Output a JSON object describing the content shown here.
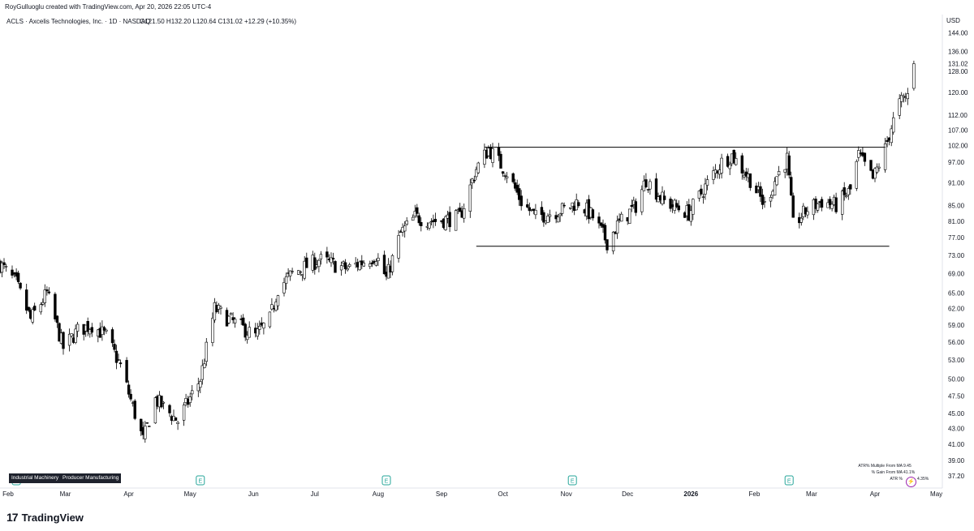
{
  "header": {
    "attribution": "RoyGulluoglu created with TradingView.com, Apr 20, 2026 22:05 UTC-4"
  },
  "symbol_line": {
    "text": "ACLS · Axcelis Technologies, Inc. · 1D · NASDAQ",
    "ohlc": "O121.50  H132.20  L120.64  C131.02  +12.29 (+10.35%)"
  },
  "price_axis": {
    "currency": "USD",
    "last_price": "131.02",
    "last_price_value": 131.02
  },
  "tags": [
    "Industrial Machinery",
    "Producer Manufacturing"
  ],
  "earnings_marker": "E",
  "stats": {
    "rows": [
      {
        "label": "ATR% Multiple From MA",
        "value": "9.45"
      },
      {
        "label": "% Gain From MA",
        "value": "41.1%"
      },
      {
        "label": "ATR %",
        "value": "4.35%"
      }
    ]
  },
  "footer": {
    "logo_mark": "17",
    "logo_text": "TradingView"
  },
  "colors": {
    "up": "#ffffff",
    "down": "#000000",
    "candle_border": "#000000",
    "trendline": "#000000",
    "tag_bg": "#1e222d",
    "earnings": "#26a69a",
    "bolt": "#9c27b0"
  },
  "chart_data": {
    "type": "candlestick",
    "title": "ACLS · Axcelis Technologies, Inc. · 1D · NASDAQ",
    "y_scale": "log",
    "ylim": [
      36,
      150
    ],
    "y_ticks": [
      "144.00",
      "136.00",
      "128.00",
      "120.00",
      "112.00",
      "107.00",
      "102.00",
      "97.00",
      "91.00",
      "85.00",
      "81.00",
      "77.00",
      "73.00",
      "69.00",
      "65.00",
      "62.00",
      "59.00",
      "56.00",
      "53.00",
      "50.00",
      "47.50",
      "45.00",
      "43.00",
      "41.00",
      "39.00",
      "37.20"
    ],
    "x_ticks": [
      {
        "label": "Feb",
        "bold": false
      },
      {
        "label": "Mar",
        "bold": false
      },
      {
        "label": "Apr",
        "bold": false
      },
      {
        "label": "May",
        "bold": false
      },
      {
        "label": "Jun",
        "bold": false
      },
      {
        "label": "Jul",
        "bold": false
      },
      {
        "label": "Aug",
        "bold": false
      },
      {
        "label": "Sep",
        "bold": false
      },
      {
        "label": "Oct",
        "bold": false
      },
      {
        "label": "Nov",
        "bold": false
      },
      {
        "label": "Dec",
        "bold": false
      },
      {
        "label": "2026",
        "bold": true
      },
      {
        "label": "Feb",
        "bold": false
      },
      {
        "label": "Mar",
        "bold": false
      },
      {
        "label": "Apr",
        "bold": false
      },
      {
        "label": "May",
        "bold": false
      }
    ],
    "earnings_events": [
      "2025-02-05",
      "2025-05-06",
      "2025-08-05",
      "2025-11-04",
      "2026-02-18"
    ],
    "resistance": {
      "value": 101.5,
      "from": "2025-09-22",
      "to": "2026-04-06"
    },
    "support": {
      "value": 75.0,
      "from": "2025-09-18",
      "to": "2026-04-08"
    },
    "last_close": 131.02,
    "price_path": [
      [
        "2025-01-28",
        71.0
      ],
      [
        "2025-02-05",
        67.0
      ],
      [
        "2025-02-12",
        60.0
      ],
      [
        "2025-02-20",
        65.0
      ],
      [
        "2025-02-28",
        55.0
      ],
      [
        "2025-03-07",
        58.0
      ],
      [
        "2025-03-14",
        59.0
      ],
      [
        "2025-03-21",
        57.0
      ],
      [
        "2025-03-28",
        52.0
      ],
      [
        "2025-04-04",
        45.0
      ],
      [
        "2025-04-08",
        41.5
      ],
      [
        "2025-04-14",
        47.0
      ],
      [
        "2025-04-25",
        44.0
      ],
      [
        "2025-05-06",
        50.0
      ],
      [
        "2025-05-13",
        62.0
      ],
      [
        "2025-05-20",
        60.0
      ],
      [
        "2025-06-02",
        57.0
      ],
      [
        "2025-06-09",
        60.0
      ],
      [
        "2025-06-13",
        66.0
      ],
      [
        "2025-06-20",
        69.0
      ],
      [
        "2025-07-03",
        72.0
      ],
      [
        "2025-07-17",
        70.0
      ],
      [
        "2025-07-31",
        73.0
      ],
      [
        "2025-08-05",
        68.0
      ],
      [
        "2025-08-12",
        78.0
      ],
      [
        "2025-08-19",
        82.0
      ],
      [
        "2025-08-29",
        81.0
      ],
      [
        "2025-09-10",
        82.0
      ],
      [
        "2025-09-18",
        95.0
      ],
      [
        "2025-09-24",
        101.0
      ],
      [
        "2025-10-03",
        94.0
      ],
      [
        "2025-10-10",
        86.0
      ],
      [
        "2025-10-17",
        82.0
      ],
      [
        "2025-10-31",
        84.0
      ],
      [
        "2025-11-07",
        86.0
      ],
      [
        "2025-11-14",
        82.0
      ],
      [
        "2025-11-21",
        76.0
      ],
      [
        "2025-11-26",
        80.0
      ],
      [
        "2025-12-05",
        85.0
      ],
      [
        "2025-12-10",
        92.0
      ],
      [
        "2025-12-19",
        86.0
      ],
      [
        "2025-12-31",
        83.0
      ],
      [
        "2026-01-08",
        90.0
      ],
      [
        "2026-01-16",
        97.0
      ],
      [
        "2026-01-21",
        99.0
      ],
      [
        "2026-01-30",
        92.0
      ],
      [
        "2026-02-06",
        85.0
      ],
      [
        "2026-02-12",
        93.0
      ],
      [
        "2026-02-17",
        98.0
      ],
      [
        "2026-02-20",
        80.0
      ],
      [
        "2026-02-27",
        84.0
      ],
      [
        "2026-03-06",
        86.0
      ],
      [
        "2026-03-13",
        85.0
      ],
      [
        "2026-03-20",
        89.0
      ],
      [
        "2026-03-24",
        99.0
      ],
      [
        "2026-03-31",
        92.0
      ],
      [
        "2026-04-06",
        101.0
      ],
      [
        "2026-04-09",
        108.0
      ],
      [
        "2026-04-13",
        116.0
      ],
      [
        "2026-04-17",
        119.0
      ],
      [
        "2026-04-20",
        131.02
      ]
    ]
  }
}
